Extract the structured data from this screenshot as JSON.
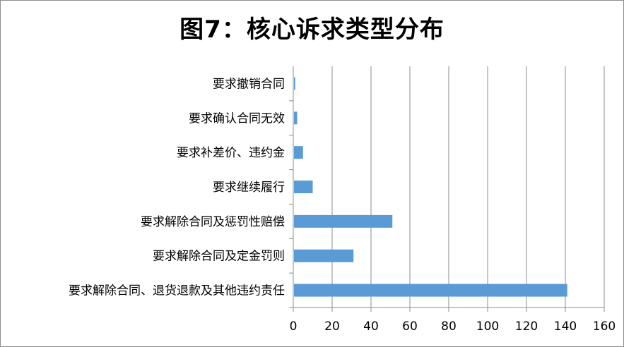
{
  "chart_data": {
    "type": "bar",
    "orientation": "horizontal",
    "title": "图7：核心诉求类型分布",
    "categories": [
      "要求撤销合同",
      "要求确认合同无效",
      "要求补差价、违约金",
      "要求继续履行",
      "要求解除合同及惩罚性赔偿",
      "要求解除合同及定金罚则",
      "要求解除合同、退货退款及其他违约责任"
    ],
    "values": [
      1,
      2,
      5,
      10,
      51,
      31,
      141
    ],
    "xlim": [
      0,
      160
    ],
    "xticks": [
      "0",
      "20",
      "40",
      "60",
      "80",
      "100",
      "120",
      "140",
      "160"
    ],
    "grid": "vertical",
    "legend": "none",
    "bar_color": "#5b9bd5",
    "xlabel": "",
    "ylabel": ""
  }
}
